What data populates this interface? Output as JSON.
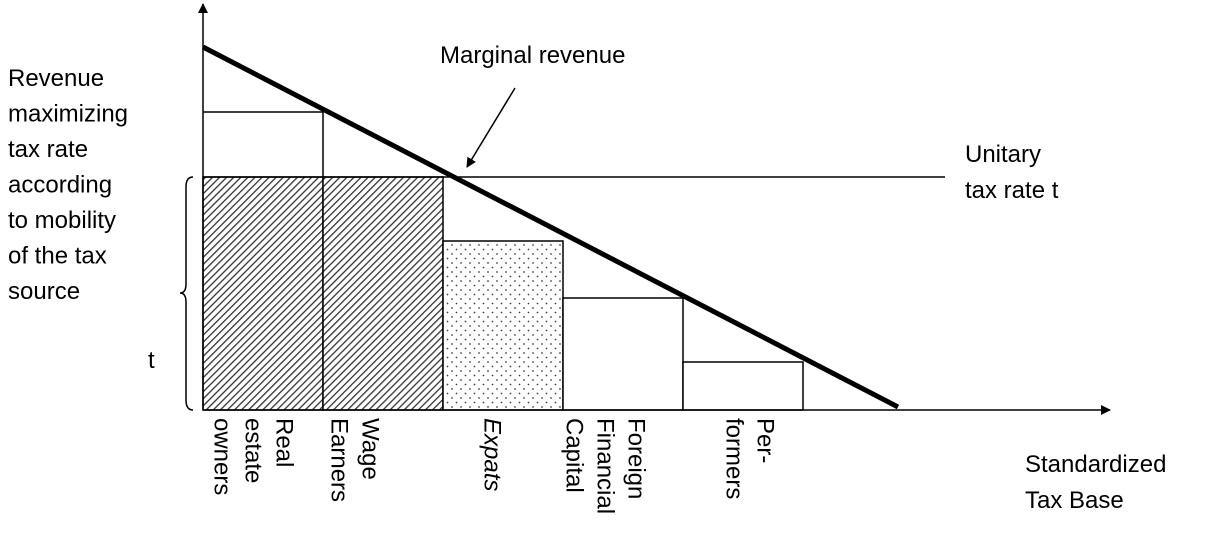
{
  "diagram": {
    "y_label_lines": [
      "Revenue",
      "maximizing",
      "tax rate",
      "according",
      "to mobility",
      "of  the tax",
      "source"
    ],
    "bracket_label": "t",
    "curve_label": "Marginal revenue",
    "unitary_lines": [
      "Unitary",
      "tax rate t"
    ],
    "x_label_lines": [
      "Standardized",
      "Tax Base"
    ],
    "sources": [
      {
        "lines": [
          "Real",
          "estate",
          "owners"
        ]
      },
      {
        "lines": [
          "Wage",
          "Earners"
        ]
      },
      {
        "lines": [
          "Expats"
        ]
      },
      {
        "lines": [
          "Foreign",
          "Financial",
          "Capital"
        ]
      },
      {
        "lines": [
          "Per-",
          "formers"
        ]
      }
    ]
  }
}
